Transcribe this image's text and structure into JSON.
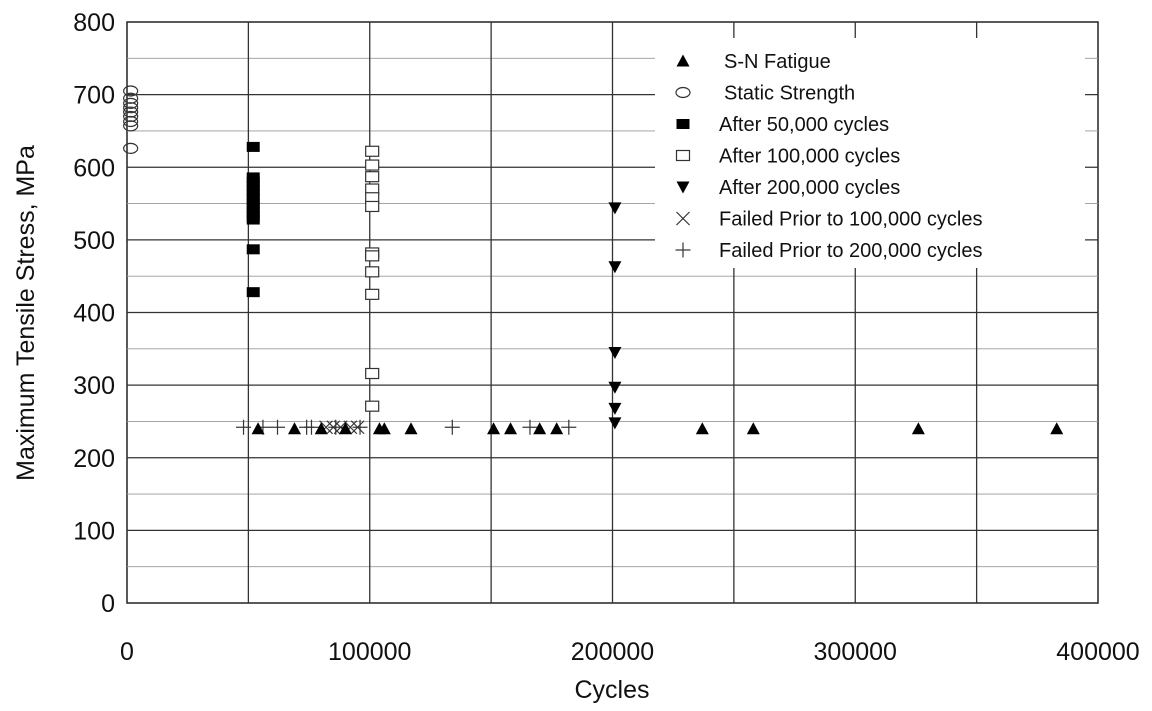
{
  "chart_data": {
    "type": "scatter",
    "xlabel": "Cycles",
    "ylabel": "Maximum Tensile Stress, MPa",
    "xlim": [
      0,
      400000
    ],
    "ylim": [
      0,
      800
    ],
    "x_ticks": [
      0,
      100000,
      200000,
      300000,
      400000
    ],
    "x_tick_labels": [
      "0",
      "100000",
      "200000",
      "300000",
      "400000"
    ],
    "y_ticks": [
      0,
      100,
      200,
      300,
      400,
      500,
      600,
      700,
      800
    ],
    "y_tick_labels": [
      "0",
      "100",
      "200",
      "300",
      "400",
      "500",
      "600",
      "700",
      "800"
    ],
    "x_minor_step": 50000,
    "y_minor_step": 50,
    "grid": true,
    "legend_position": "top-right",
    "series": [
      {
        "name": "S-N Fatigue",
        "marker": "triangle-up",
        "points": [
          [
            54000,
            240
          ],
          [
            69000,
            240
          ],
          [
            80000,
            240
          ],
          [
            90000,
            240
          ],
          [
            104000,
            240
          ],
          [
            106000,
            240
          ],
          [
            117000,
            240
          ],
          [
            151000,
            240
          ],
          [
            158000,
            240
          ],
          [
            170000,
            240
          ],
          [
            177000,
            240
          ],
          [
            237000,
            240
          ],
          [
            258000,
            240
          ],
          [
            326000,
            240
          ],
          [
            383000,
            240
          ]
        ]
      },
      {
        "name": "Static Strength",
        "marker": "circle-open",
        "points": [
          [
            1500,
            705
          ],
          [
            1500,
            695
          ],
          [
            1500,
            688
          ],
          [
            1500,
            682
          ],
          [
            1500,
            676
          ],
          [
            1500,
            670
          ],
          [
            1500,
            663
          ],
          [
            1500,
            657
          ],
          [
            1500,
            626
          ]
        ]
      },
      {
        "name": "After 50,000 cycles",
        "marker": "square-filled",
        "points": [
          [
            52000,
            628
          ],
          [
            52000,
            586
          ],
          [
            52000,
            580
          ],
          [
            52000,
            574
          ],
          [
            52000,
            568
          ],
          [
            52000,
            562
          ],
          [
            52000,
            556
          ],
          [
            52000,
            550
          ],
          [
            52000,
            544
          ],
          [
            52000,
            538
          ],
          [
            52000,
            532
          ],
          [
            52000,
            528
          ],
          [
            52000,
            487
          ],
          [
            52000,
            428
          ]
        ]
      },
      {
        "name": "After 100,000 cycles",
        "marker": "square-open",
        "points": [
          [
            101000,
            622
          ],
          [
            101000,
            603
          ],
          [
            101000,
            587
          ],
          [
            101000,
            570
          ],
          [
            101000,
            558
          ],
          [
            101000,
            546
          ],
          [
            101000,
            482
          ],
          [
            101000,
            478
          ],
          [
            101000,
            456
          ],
          [
            101000,
            425
          ],
          [
            101000,
            316
          ],
          [
            101000,
            271
          ]
        ]
      },
      {
        "name": "After 200,000 cycles",
        "marker": "triangle-down",
        "points": [
          [
            201000,
            544
          ],
          [
            201000,
            463
          ],
          [
            201000,
            345
          ],
          [
            201000,
            297
          ],
          [
            201000,
            268
          ],
          [
            201000,
            248
          ]
        ]
      },
      {
        "name": "Failed Prior to 100,000 cycles",
        "marker": "x",
        "points": [
          [
            82000,
            242
          ],
          [
            85000,
            242
          ],
          [
            88000,
            242
          ],
          [
            92000,
            242
          ],
          [
            95000,
            242
          ]
        ]
      },
      {
        "name": "Failed Prior to 200,000 cycles",
        "marker": "plus",
        "points": [
          [
            48000,
            242
          ],
          [
            56000,
            242
          ],
          [
            62000,
            242
          ],
          [
            74000,
            242
          ],
          [
            76000,
            242
          ],
          [
            86000,
            242
          ],
          [
            96000,
            242
          ],
          [
            134000,
            242
          ],
          [
            166000,
            242
          ],
          [
            182000,
            242
          ]
        ]
      }
    ]
  }
}
